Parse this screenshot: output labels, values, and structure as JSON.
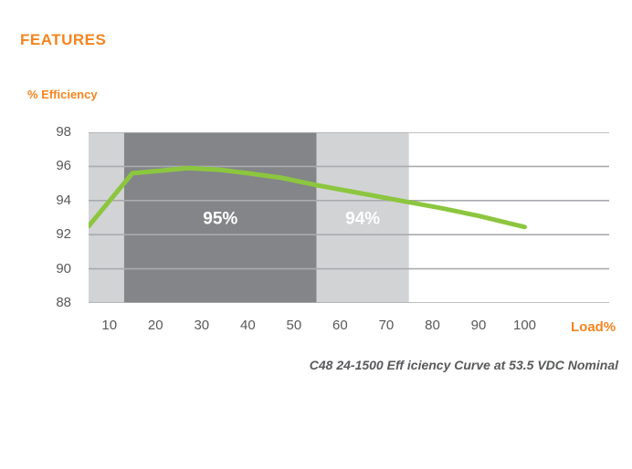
{
  "page": {
    "title": "FEATURES"
  },
  "colors": {
    "accent_orange": "#F5841F",
    "line_green": "#8CC63F",
    "band_dark": "#838588",
    "band_light": "#D2D3D5",
    "gridline": "#A9ABAE",
    "axis_text": "#58595B",
    "band_label_text": "#FFFFFF"
  },
  "chart_data": {
    "type": "line",
    "title": "C48 24-1500 Eff iciency Curve at 53.5 VDC Nominal",
    "xlabel": "Load%",
    "ylabel": "% Efficiency",
    "xlim": [
      5.5,
      118.3
    ],
    "ylim": [
      88,
      98
    ],
    "x_ticks": [
      10,
      20,
      30,
      40,
      50,
      60,
      70,
      80,
      90,
      100
    ],
    "y_ticks": [
      98,
      96,
      94,
      92,
      90,
      88
    ],
    "grid": "horizontal-only",
    "legend": "none",
    "series": [
      {
        "name": "efficiency",
        "x": [
          5.5,
          15,
          21,
          27,
          34,
          40,
          47,
          55,
          62,
          70,
          75,
          82,
          90,
          100
        ],
        "y": [
          92.5,
          95.6,
          95.75,
          95.9,
          95.8,
          95.6,
          95.35,
          94.9,
          94.55,
          94.15,
          93.9,
          93.55,
          93.1,
          92.45
        ]
      }
    ],
    "bands": [
      {
        "label": "",
        "x_start": 5.5,
        "x_end": 13.2,
        "shade": "light"
      },
      {
        "label": "95%",
        "x_start": 13.2,
        "x_end": 54.9,
        "shade": "dark"
      },
      {
        "label": "94%",
        "x_start": 54.9,
        "x_end": 74.9,
        "shade": "light"
      }
    ],
    "band_label_y": 93
  }
}
